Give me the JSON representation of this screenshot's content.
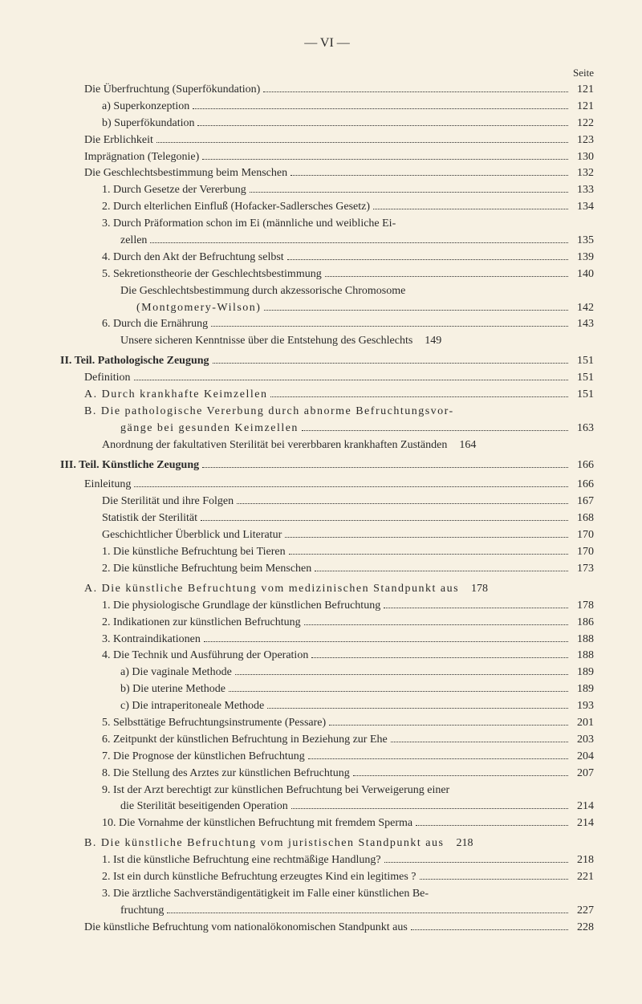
{
  "header": "—   VI   —",
  "seiteLabel": "Seite",
  "entries": [
    {
      "text": "Die Überfruchtung (Superfökundation)",
      "page": "121",
      "indent": 1
    },
    {
      "text": "a) Superkonzeption",
      "page": "121",
      "indent": 2
    },
    {
      "text": "b) Superfökundation",
      "page": "122",
      "indent": 2
    },
    {
      "text": "Die Erblichkeit",
      "page": "123",
      "indent": 1
    },
    {
      "text": "Imprägnation (Telegonie)",
      "page": "130",
      "indent": 1
    },
    {
      "text": "Die Geschlechtsbestimmung beim Menschen",
      "page": "132",
      "indent": 1
    },
    {
      "text": "1. Durch Gesetze der Vererbung",
      "page": "133",
      "indent": 2
    },
    {
      "text": "2. Durch elterlichen Einfluß (Hofacker-Sadlersches Gesetz)",
      "page": "134",
      "indent": 2
    },
    {
      "text": "3. Durch Präformation schon im Ei (männliche und weibliche Ei-",
      "page": "",
      "indent": 2,
      "noDots": true
    },
    {
      "text": "zellen",
      "page": "135",
      "indent": 3
    },
    {
      "text": "4. Durch den Akt der Befruchtung selbst",
      "page": "139",
      "indent": 2
    },
    {
      "text": "5. Sekretionstheorie der Geschlechtsbestimmung",
      "page": "140",
      "indent": 2
    },
    {
      "text": "Die Geschlechtsbestimmung durch akzessorische Chromosome",
      "page": "",
      "indent": 3,
      "noDots": true
    },
    {
      "text": "(Montgomery-Wilson)",
      "page": "142",
      "indent": 4,
      "spaced": true
    },
    {
      "text": "6. Durch die Ernährung",
      "page": "143",
      "indent": 2
    },
    {
      "text": "Unsere sicheren Kenntnisse über die Entstehung des Geschlechts",
      "page": "149",
      "indent": 3,
      "noDots": true,
      "tightGap": true
    },
    {
      "text": "II. Teil.  Pathologische Zeugung",
      "page": "151",
      "indent": 0,
      "bold": true,
      "groupSpace": true
    },
    {
      "text": "Definition",
      "page": "151",
      "indent": 1
    },
    {
      "text": "A. Durch krankhafte Keimzellen",
      "page": "151",
      "indent": 1,
      "spaced": true
    },
    {
      "text": "B. Die pathologische Vererbung durch abnorme Befruchtungsvor-",
      "page": "",
      "indent": 1,
      "spaced": true,
      "noDots": true
    },
    {
      "text": "gänge bei gesunden Keimzellen",
      "page": "163",
      "indent": 3,
      "spaced": true
    },
    {
      "text": "Anordnung der fakultativen Sterilität bei vererbbaren krankhaften Zuständen",
      "page": "164",
      "indent": 2,
      "noDots": true,
      "tightGap": true
    },
    {
      "text": "III. Teil.  Künstliche Zeugung",
      "page": "166",
      "indent": 0,
      "bold": true,
      "groupSpace": true
    },
    {
      "text": "Einleitung",
      "page": "166",
      "indent": 1,
      "groupSpace": true
    },
    {
      "text": "Die Sterilität und ihre Folgen",
      "page": "167",
      "indent": 2
    },
    {
      "text": "Statistik der Sterilität",
      "page": "168",
      "indent": 2
    },
    {
      "text": "Geschichtlicher Überblick und Literatur",
      "page": "170",
      "indent": 2
    },
    {
      "text": "1. Die künstliche Befruchtung bei Tieren",
      "page": "170",
      "indent": 2
    },
    {
      "text": "2. Die künstliche Befruchtung beim Menschen",
      "page": "173",
      "indent": 2
    },
    {
      "text": "A. Die künstliche Befruchtung vom medizinischen Standpunkt aus",
      "page": "178",
      "indent": 1,
      "spaced": true,
      "groupSpace": true,
      "noDots": true,
      "tightGap": true
    },
    {
      "text": "1. Die physiologische Grundlage der künstlichen Befruchtung",
      "page": "178",
      "indent": 2
    },
    {
      "text": "2. Indikationen zur künstlichen Befruchtung",
      "page": "186",
      "indent": 2
    },
    {
      "text": "3. Kontraindikationen",
      "page": "188",
      "indent": 2
    },
    {
      "text": "4. Die Technik und Ausführung der Operation",
      "page": "188",
      "indent": 2
    },
    {
      "text": "a) Die vaginale Methode",
      "page": "189",
      "indent": 3
    },
    {
      "text": "b) Die uterine Methode",
      "page": "189",
      "indent": 3
    },
    {
      "text": "c) Die intraperitoneale Methode",
      "page": "193",
      "indent": 3
    },
    {
      "text": "5. Selbsttätige Befruchtungsinstrumente (Pessare)",
      "page": "201",
      "indent": 2
    },
    {
      "text": "6. Zeitpunkt der künstlichen Befruchtung in Beziehung zur Ehe",
      "page": "203",
      "indent": 2
    },
    {
      "text": "7. Die Prognose der künstlichen Befruchtung",
      "page": "204",
      "indent": 2
    },
    {
      "text": "8. Die Stellung des Arztes zur künstlichen Befruchtung",
      "page": "207",
      "indent": 2
    },
    {
      "text": "9. Ist der Arzt berechtigt zur künstlichen Befruchtung bei Verweigerung einer",
      "page": "",
      "indent": 2,
      "noDots": true
    },
    {
      "text": "die Sterilität beseitigenden Operation",
      "page": "214",
      "indent": 3
    },
    {
      "text": "10. Die Vornahme der künstlichen Befruchtung mit fremdem Sperma",
      "page": "214",
      "indent": 2
    },
    {
      "text": "B. Die künstliche Befruchtung vom   juristischen Standpunkt aus",
      "page": "218",
      "indent": 1,
      "spaced": true,
      "groupSpace": true,
      "noDots": true,
      "tightGap": true
    },
    {
      "text": "1. Ist die künstliche Befruchtung eine rechtmäßige Handlung?",
      "page": "218",
      "indent": 2
    },
    {
      "text": "2. Ist ein durch künstliche Befruchtung erzeugtes Kind ein legitimes ?",
      "page": "221",
      "indent": 2
    },
    {
      "text": "3. Die ärztliche Sachverständigentätigkeit im Falle einer künstlichen Be-",
      "page": "",
      "indent": 2,
      "noDots": true
    },
    {
      "text": "fruchtung",
      "page": "227",
      "indent": 3
    },
    {
      "text": "Die künstliche Befruchtung vom nationalökonomischen Standpunkt aus",
      "page": "228",
      "indent": 1
    }
  ]
}
